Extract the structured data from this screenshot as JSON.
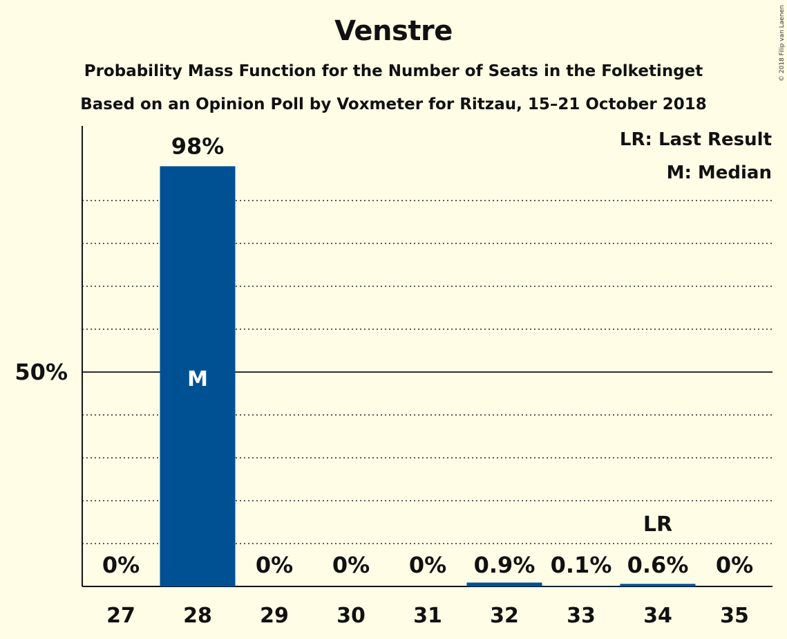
{
  "chart_data": {
    "type": "bar",
    "title": "Venstre",
    "subtitle": "Probability Mass Function for the Number of Seats in the Folketinget",
    "subtitle2": "Based on an Opinion Poll by Voxmeter for Ritzau, 15–21 October 2018",
    "copyright": "© 2018 Filip van Laenen",
    "categories": [
      "27",
      "28",
      "29",
      "30",
      "31",
      "32",
      "33",
      "34",
      "35"
    ],
    "values": [
      0,
      98,
      0,
      0,
      0,
      0.9,
      0.1,
      0.6,
      0
    ],
    "value_labels": [
      "0%",
      "98%",
      "0%",
      "0%",
      "0%",
      "0.9%",
      "0.1%",
      "0.6%",
      "0%"
    ],
    "ylim": [
      0,
      100
    ],
    "y_tick_label": "50%",
    "y_tick_value": 50,
    "median_category": "28",
    "median_marker": "M",
    "last_result_category": "34",
    "last_result_marker": "LR",
    "legend": [
      "LR: Last Result",
      "M: Median"
    ],
    "legend_position": "top-right",
    "grid": "dotted every 10%",
    "bar_color": "#005094"
  }
}
